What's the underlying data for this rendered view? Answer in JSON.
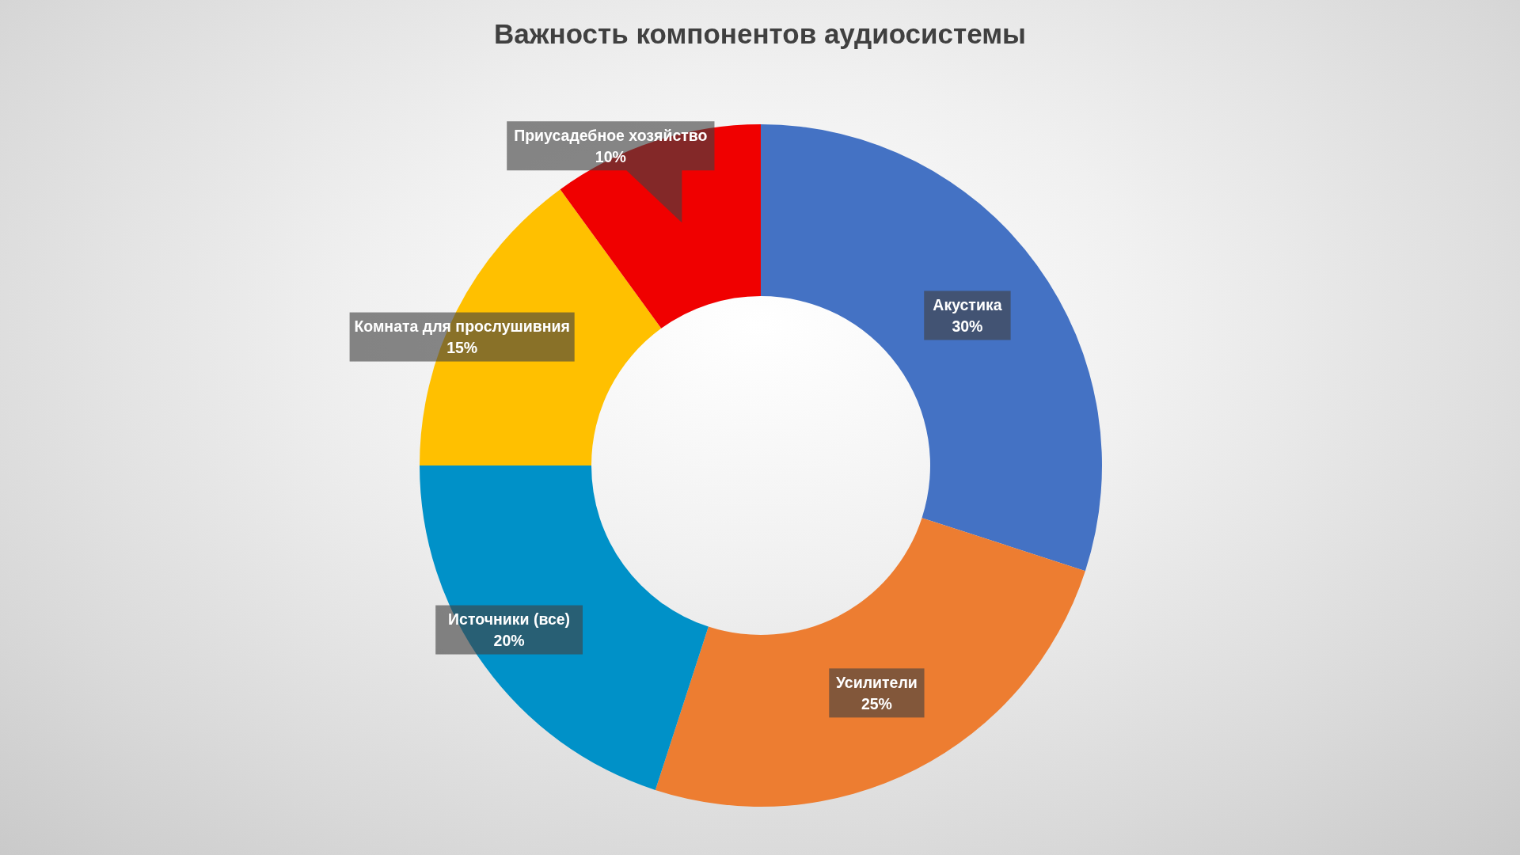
{
  "chart_data": {
    "type": "donut",
    "title": "Важность компонентов аудиосистемы",
    "categories": [
      "Акустика",
      "Усилители",
      "Источники (все)",
      "Комната для прослушивния",
      "Приусадебное хозяйство"
    ],
    "values": [
      30,
      25,
      20,
      15,
      10
    ],
    "colors": [
      "#4472c4",
      "#ed7d31",
      "#0091c8",
      "#ffc000",
      "#f00000"
    ],
    "value_labels": [
      "30%",
      "25%",
      "20%",
      "15%",
      "10%"
    ]
  }
}
